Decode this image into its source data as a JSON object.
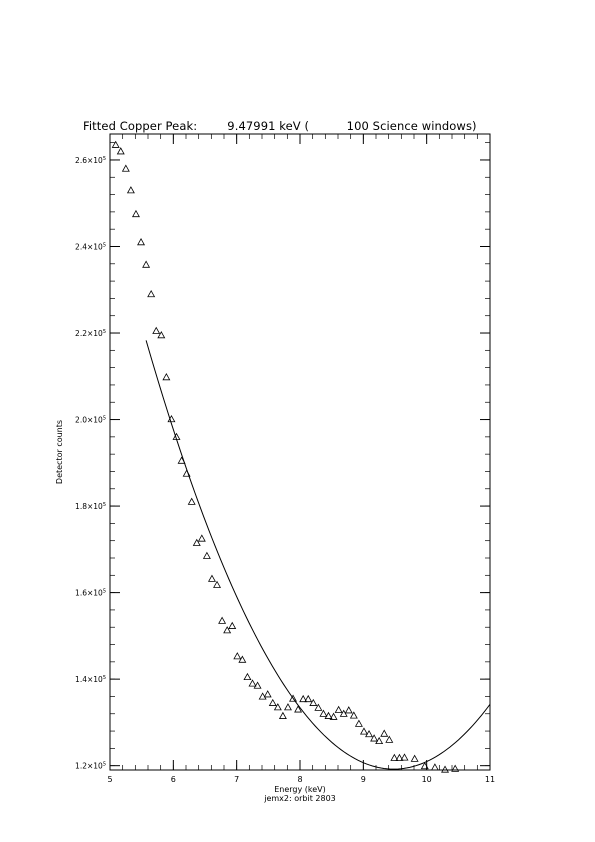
{
  "page": {
    "title": "Fitted Copper Peak:        9.47991 keV (          100 Science windows)"
  },
  "chart_data": {
    "type": "scatter",
    "title": "Fitted Copper Peak:        9.47991 keV (          100 Science windows)",
    "xlabel": "Energy (keV)",
    "ylabel": "Detector counts",
    "subtitle": "jemx2: orbit 2803",
    "xlim": [
      5,
      11
    ],
    "ylim": [
      119000,
      266000
    ],
    "x_ticks": [
      {
        "value": 5,
        "label": "5"
      },
      {
        "value": 6,
        "label": "6"
      },
      {
        "value": 7,
        "label": "7"
      },
      {
        "value": 8,
        "label": "8"
      },
      {
        "value": 9,
        "label": "9"
      },
      {
        "value": 10,
        "label": "10"
      },
      {
        "value": 11,
        "label": "11"
      }
    ],
    "y_ticks": [
      {
        "value": 120000,
        "mant": "1.2×10",
        "exp": "5"
      },
      {
        "value": 140000,
        "mant": "1.4×10",
        "exp": "5"
      },
      {
        "value": 160000,
        "mant": "1.6×10",
        "exp": "5"
      },
      {
        "value": 180000,
        "mant": "1.8×10",
        "exp": "5"
      },
      {
        "value": 200000,
        "mant": "2.0×10",
        "exp": "5"
      },
      {
        "value": 220000,
        "mant": "2.2×10",
        "exp": "5"
      },
      {
        "value": 240000,
        "mant": "2.4×10",
        "exp": "5"
      },
      {
        "value": 260000,
        "mant": "2.6×10",
        "exp": "5"
      }
    ],
    "marker": "triangle-open",
    "points": [
      [
        5.09,
        263500
      ],
      [
        5.17,
        262000
      ],
      [
        5.25,
        258000
      ],
      [
        5.33,
        253000
      ],
      [
        5.41,
        247500
      ],
      [
        5.49,
        241000
      ],
      [
        5.57,
        235800
      ],
      [
        5.65,
        229000
      ],
      [
        5.73,
        220500
      ],
      [
        5.81,
        219500
      ],
      [
        5.89,
        209800
      ],
      [
        5.97,
        200100
      ],
      [
        6.05,
        196000
      ],
      [
        6.13,
        190500
      ],
      [
        6.21,
        187500
      ],
      [
        6.29,
        181000
      ],
      [
        6.37,
        171500
      ],
      [
        6.45,
        172500
      ],
      [
        6.53,
        168500
      ],
      [
        6.61,
        163200
      ],
      [
        6.69,
        161800
      ],
      [
        6.77,
        153500
      ],
      [
        6.85,
        151300
      ],
      [
        6.93,
        152300
      ],
      [
        7.01,
        145300
      ],
      [
        7.09,
        144500
      ],
      [
        7.17,
        140500
      ],
      [
        7.25,
        139000
      ],
      [
        7.33,
        138500
      ],
      [
        7.41,
        136000
      ],
      [
        7.49,
        136500
      ],
      [
        7.57,
        134500
      ],
      [
        7.65,
        133500
      ],
      [
        7.73,
        131500
      ],
      [
        7.81,
        133500
      ],
      [
        7.89,
        135500
      ],
      [
        7.97,
        133000
      ],
      [
        8.05,
        135400
      ],
      [
        8.13,
        135400
      ],
      [
        8.21,
        134500
      ],
      [
        8.29,
        133400
      ],
      [
        8.37,
        132000
      ],
      [
        8.45,
        131500
      ],
      [
        8.53,
        131300
      ],
      [
        8.61,
        132900
      ],
      [
        8.69,
        132000
      ],
      [
        8.77,
        132800
      ],
      [
        8.85,
        131600
      ],
      [
        8.93,
        129700
      ],
      [
        9.01,
        127900
      ],
      [
        9.09,
        127300
      ],
      [
        9.17,
        126300
      ],
      [
        9.25,
        125700
      ],
      [
        9.33,
        127400
      ],
      [
        9.41,
        126000
      ],
      [
        9.49,
        121800
      ],
      [
        9.57,
        121800
      ],
      [
        9.65,
        121900
      ],
      [
        9.81,
        121600
      ],
      [
        9.97,
        119900
      ],
      [
        10.13,
        119600
      ],
      [
        10.29,
        119100
      ],
      [
        10.45,
        119300
      ]
    ],
    "fit": {
      "x_start": 5.57,
      "x_end": 11.0,
      "peak_x": 9.47991,
      "min_y": 119200,
      "start_y": 218300
    }
  }
}
